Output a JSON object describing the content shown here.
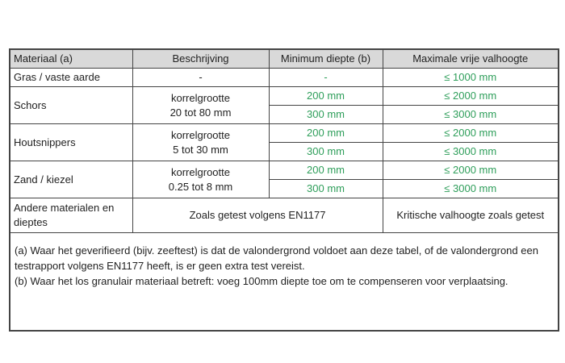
{
  "headers": [
    "Materiaal (a)",
    "Beschrijving",
    "Minimum diepte (b)",
    "Maximale vrije valhoogte"
  ],
  "rows": [
    {
      "material": "Gras / vaste aarde",
      "desc1": "-",
      "desc2": "",
      "depths": [
        "-"
      ],
      "heights": [
        "≤ 1000 mm"
      ]
    },
    {
      "material": "Schors",
      "desc1": "korrelgrootte",
      "desc2": "20 tot 80 mm",
      "depths": [
        "200 mm",
        "300 mm"
      ],
      "heights": [
        "≤ 2000 mm",
        "≤ 3000 mm"
      ]
    },
    {
      "material": "Houtsnippers",
      "desc1": "korrelgrootte",
      "desc2": "5 tot 30 mm",
      "depths": [
        "200 mm",
        "300 mm"
      ],
      "heights": [
        "≤ 2000 mm",
        "≤ 3000 mm"
      ]
    },
    {
      "material": "Zand / kiezel",
      "desc1": "korrelgrootte",
      "desc2": "0.25 tot 8 mm",
      "depths": [
        "200 mm",
        "300 mm"
      ],
      "heights": [
        "≤ 2000 mm",
        "≤ 3000 mm"
      ]
    }
  ],
  "other": {
    "material": "Andere materialen en dieptes",
    "tested": "Zoals getest volgens EN1177",
    "height": "Kritische valhoogte zoals getest"
  },
  "notes": [
    "(a) Waar het geverifieerd (bijv. zeeftest) is dat de valondergrond voldoet aan deze tabel, of de valondergrond een testrapport volgens EN1177 heeft, is er geen extra test vereist.",
    "(b) Waar het los granulair materiaal betreft: voeg 100mm diepte toe om te compenseren voor verplaatsing."
  ],
  "colors": {
    "green": "#2e9e5a",
    "header_bg": "#d9d9d9"
  }
}
